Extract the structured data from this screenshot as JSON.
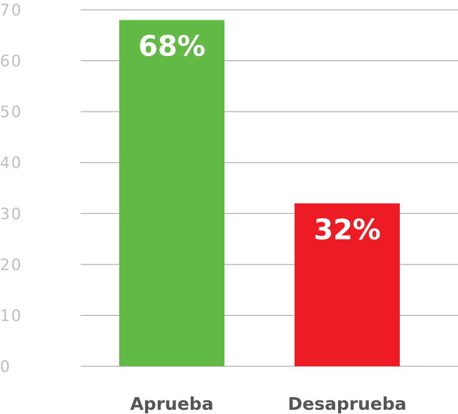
{
  "chart_data": {
    "type": "bar",
    "categories": [
      "Aprueba",
      "Desaprueba"
    ],
    "values": [
      68,
      32
    ],
    "value_labels": [
      "68%",
      "32%"
    ],
    "colors": [
      "#62b946",
      "#ed1c24"
    ],
    "ylim": [
      0,
      70
    ],
    "yticks": [
      0,
      10,
      20,
      30,
      40,
      50,
      60,
      70
    ],
    "grid": true
  }
}
